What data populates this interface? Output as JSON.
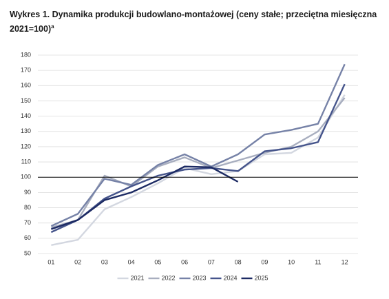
{
  "chart_data": {
    "type": "line",
    "title": "Wykres 1. Dynamika produkcji budowlano-montażowej (ceny stałe; przeciętna miesięczna 2021=100)",
    "title_superscript": "a",
    "categories": [
      "01",
      "02",
      "03",
      "04",
      "05",
      "06",
      "07",
      "08",
      "09",
      "10",
      "11",
      "12"
    ],
    "series": [
      {
        "name": "2021",
        "color": "#d3d7e0",
        "values": [
          55.5,
          59,
          79,
          87,
          96,
          106,
          102,
          104,
          115,
          116,
          126,
          154
        ]
      },
      {
        "name": "2022",
        "color": "#a8aebf",
        "values": [
          67,
          72,
          101,
          94,
          107,
          113,
          106,
          111,
          116,
          120,
          130,
          152
        ]
      },
      {
        "name": "2023",
        "color": "#7682a7",
        "values": [
          68,
          76,
          99,
          95,
          108,
          115,
          107,
          115,
          128,
          131,
          135,
          174
        ]
      },
      {
        "name": "2024",
        "color": "#45548b",
        "values": [
          64,
          72,
          86,
          94,
          101,
          105,
          106,
          104,
          117,
          119,
          123,
          161
        ]
      },
      {
        "name": "2025",
        "color": "#1c2a63",
        "values": [
          66,
          72,
          85,
          90,
          98,
          107,
          106.5,
          97,
          null,
          null,
          null,
          null
        ]
      }
    ],
    "ylim": [
      50,
      180
    ],
    "yticks": [
      50,
      60,
      70,
      80,
      90,
      100,
      110,
      120,
      130,
      140,
      150,
      160,
      170,
      180
    ],
    "grid": true,
    "reference_line": 100,
    "legend": "bottom"
  }
}
